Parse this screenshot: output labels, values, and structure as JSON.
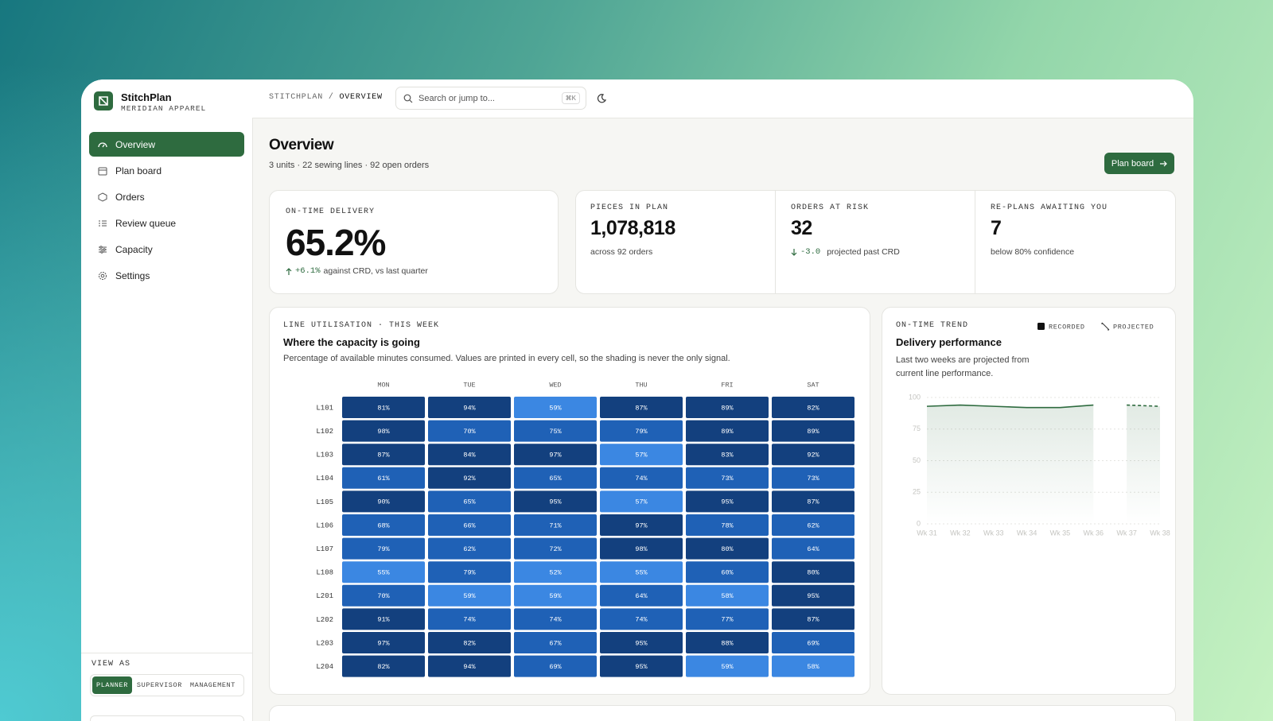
{
  "brand": {
    "name": "StitchPlan",
    "org": "MERIDIAN APPAREL"
  },
  "nav": {
    "items": [
      "Overview",
      "Plan board",
      "Orders",
      "Review queue",
      "Capacity",
      "Settings"
    ]
  },
  "view_as": {
    "label": "VIEW AS",
    "options": [
      "PLANNER",
      "SUPERVISOR",
      "MANAGEMENT"
    ]
  },
  "topbar": {
    "breadcrumb": [
      "STITCHPLAN",
      "OVERVIEW"
    ],
    "separator": "/",
    "search": "Search or jump to...",
    "shortcut": "⌘K"
  },
  "header": {
    "title": "Overview",
    "subtitle": "3 units · 22 sewing lines · 92 open orders",
    "action": "Plan board"
  },
  "kpis": [
    {
      "label": "ON-TIME DELIVERY",
      "value": "65.2%",
      "delta": "+6.1%",
      "note": "against CRD, vs last quarter"
    },
    {
      "label": "PIECES IN PLAN",
      "value": "1,078,818",
      "note": "across 92 orders"
    },
    {
      "label": "ORDERS AT RISK",
      "value": "32",
      "delta": "-3.0",
      "note": "projected past CRD"
    },
    {
      "label": "RE-PLANS AWAITING YOU",
      "value": "7",
      "note": "below 80% confidence"
    }
  ],
  "heatmap": {
    "eyebrow": "LINE UTILISATION · THIS WEEK",
    "title": "Where the capacity is going",
    "description": "Percentage of available minutes consumed. Values are printed in every cell, so the shading is never the only signal.",
    "columns": [
      "MON",
      "TUE",
      "WED",
      "THU",
      "FRI",
      "SAT"
    ],
    "rows": [
      {
        "line": "L101",
        "values": [
          81,
          94,
          59,
          87,
          89,
          82
        ],
        "value_labels": [
          "81%",
          "94%",
          "59%",
          "87%",
          "89%",
          "82%"
        ]
      },
      {
        "line": "L102",
        "values": [
          98,
          70,
          75,
          79,
          89,
          89
        ],
        "value_labels": [
          "98%",
          "70%",
          "75%",
          "79%",
          "89%",
          "89%"
        ]
      },
      {
        "line": "L103",
        "values": [
          87,
          84,
          97,
          57,
          83,
          92
        ],
        "value_labels": [
          "87%",
          "84%",
          "97%",
          "57%",
          "83%",
          "92%"
        ]
      },
      {
        "line": "L104",
        "values": [
          61,
          92,
          65,
          74,
          73,
          73
        ],
        "value_labels": [
          "61%",
          "92%",
          "65%",
          "74%",
          "73%",
          "73%"
        ]
      },
      {
        "line": "L105",
        "values": [
          90,
          65,
          95,
          57,
          95,
          87
        ],
        "value_labels": [
          "90%",
          "65%",
          "95%",
          "57%",
          "95%",
          "87%"
        ]
      },
      {
        "line": "L106",
        "values": [
          68,
          66,
          71,
          97,
          78,
          62
        ],
        "value_labels": [
          "68%",
          "66%",
          "71%",
          "97%",
          "78%",
          "62%"
        ]
      },
      {
        "line": "L107",
        "values": [
          79,
          62,
          72,
          98,
          80,
          64
        ],
        "value_labels": [
          "79%",
          "62%",
          "72%",
          "98%",
          "80%",
          "64%"
        ]
      },
      {
        "line": "L108",
        "values": [
          55,
          79,
          52,
          55,
          60,
          80
        ],
        "value_labels": [
          "55%",
          "79%",
          "52%",
          "55%",
          "60%",
          "80%"
        ]
      },
      {
        "line": "L201",
        "values": [
          70,
          59,
          59,
          64,
          58,
          95
        ],
        "value_labels": [
          "70%",
          "59%",
          "59%",
          "64%",
          "58%",
          "95%"
        ]
      },
      {
        "line": "L202",
        "values": [
          91,
          74,
          74,
          74,
          77,
          87
        ],
        "value_labels": [
          "91%",
          "74%",
          "74%",
          "74%",
          "77%",
          "87%"
        ]
      },
      {
        "line": "L203",
        "values": [
          97,
          82,
          67,
          95,
          88,
          69
        ],
        "value_labels": [
          "97%",
          "82%",
          "67%",
          "95%",
          "88%",
          "69%"
        ]
      },
      {
        "line": "L204",
        "values": [
          82,
          94,
          69,
          95,
          59,
          58
        ],
        "value_labels": [
          "82%",
          "94%",
          "69%",
          "95%",
          "59%",
          "58%"
        ]
      }
    ]
  },
  "trend": {
    "eyebrow": "ON-TIME TREND",
    "title": "Delivery performance",
    "description": "Last two weeks are projected from current line performance.",
    "chart_data": {
      "type": "line",
      "categories": [
        "Wk 31",
        "Wk 32",
        "Wk 33",
        "Wk 34",
        "Wk 35",
        "Wk 36",
        "Wk 37",
        "Wk 38"
      ],
      "series": [
        {
          "name": "RECORDED",
          "color": "#2e6b3f",
          "values": [
            93,
            94,
            93,
            92,
            92,
            94,
            null,
            null
          ]
        },
        {
          "name": "PROJECTED",
          "color": "#2e6b3f",
          "values": [
            null,
            null,
            null,
            null,
            null,
            null,
            94,
            93
          ]
        }
      ],
      "ylim": [
        0,
        100
      ],
      "yticks": [
        0,
        25,
        50,
        75,
        100
      ],
      "grid": true
    }
  }
}
